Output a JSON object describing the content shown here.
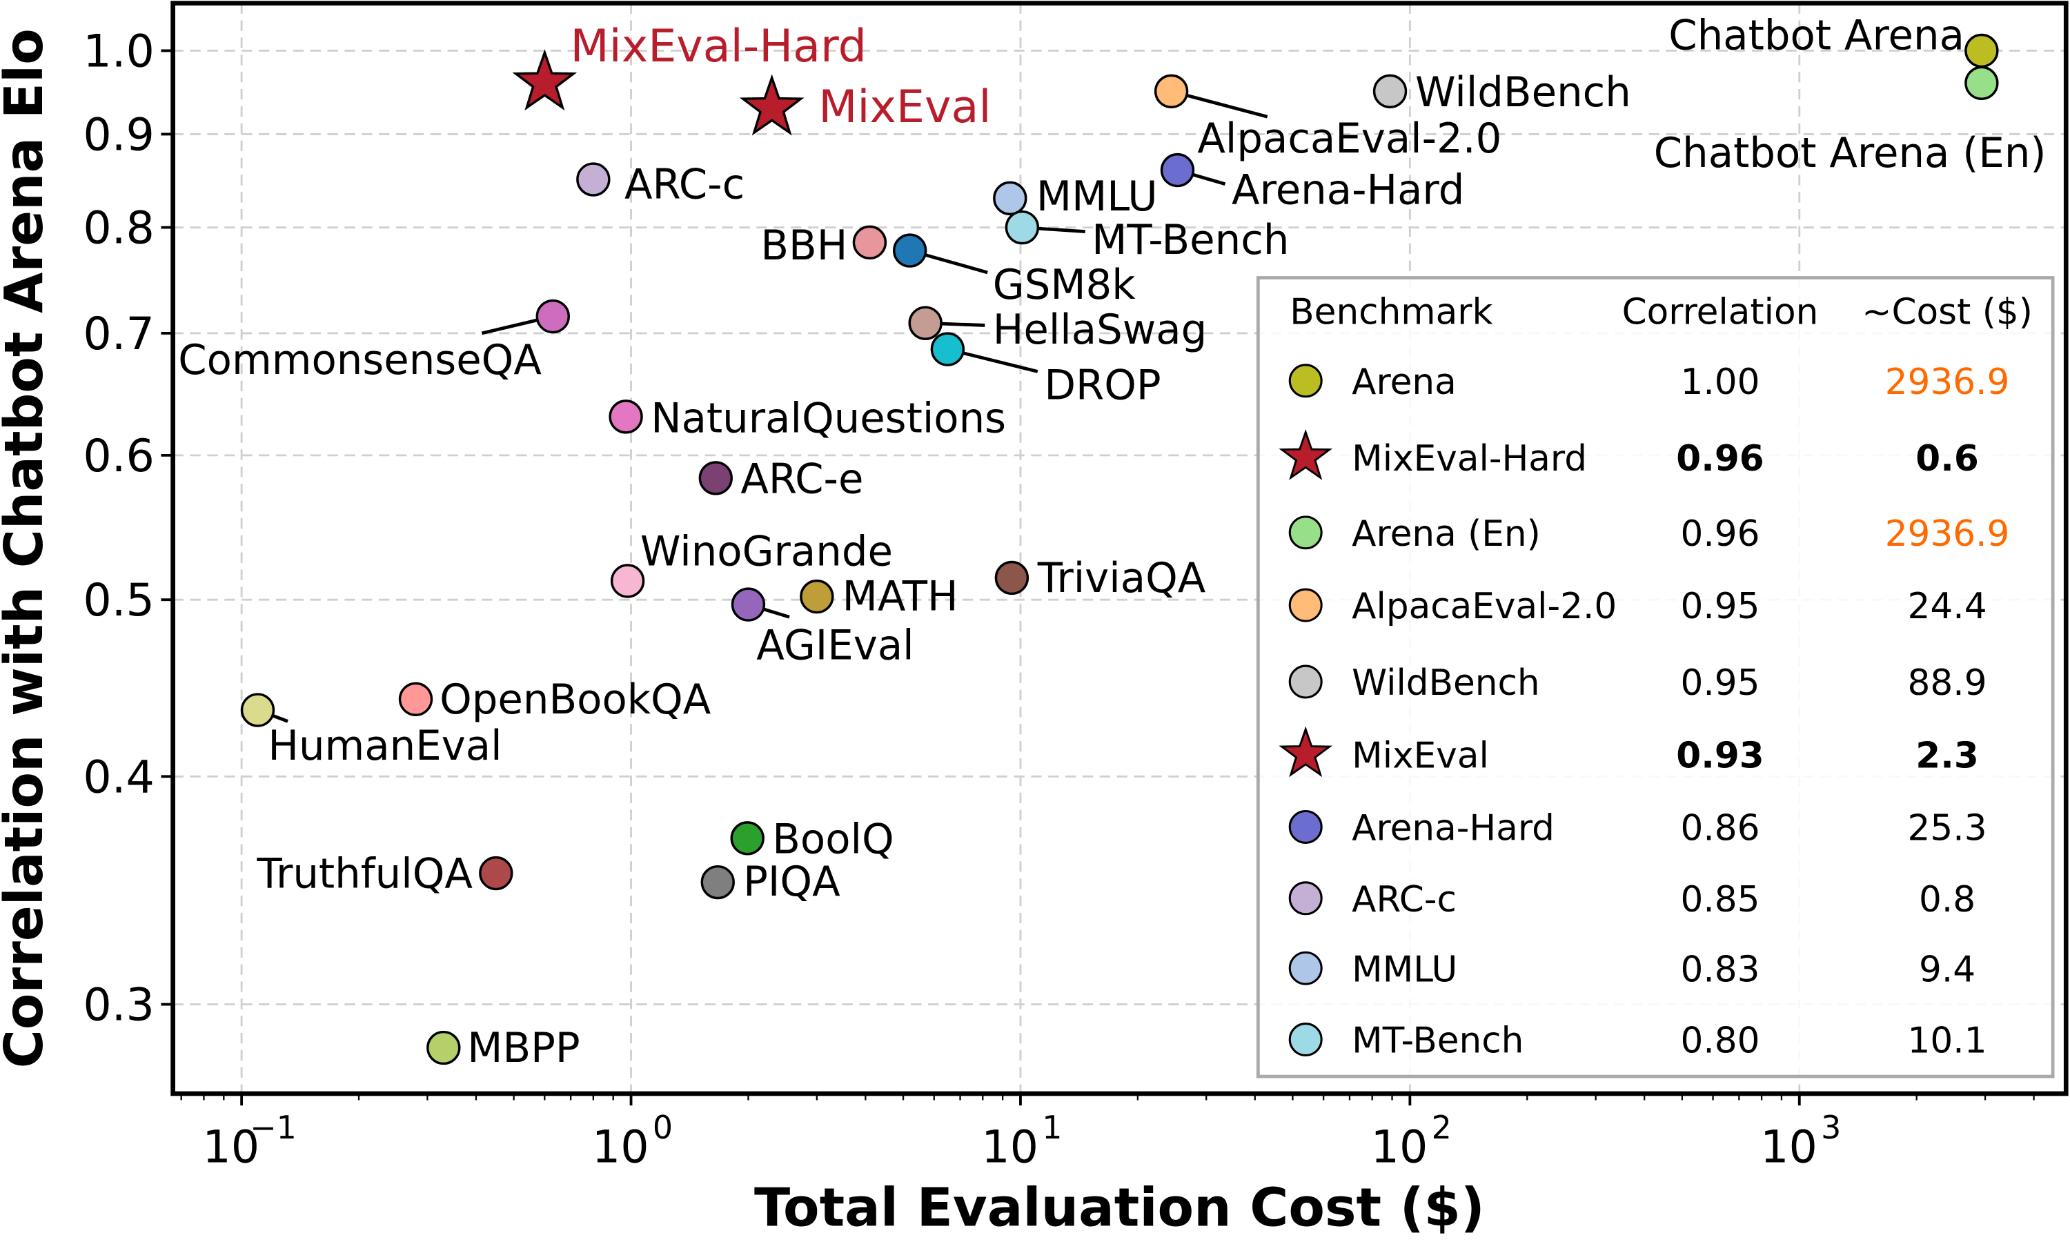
{
  "chart_data": {
    "type": "scatter",
    "xlabel": "Total Evaluation Cost ($)",
    "ylabel": "Correlation with Chatbot Arena Elo",
    "x_scale": "log",
    "y_scale": "log",
    "xlim": [
      0.065,
      5000
    ],
    "ylim": [
      0.27,
      1.065
    ],
    "x_ticks": [
      0.1,
      1,
      10,
      100,
      1000
    ],
    "x_tick_labels": [
      "10",
      "10",
      "10",
      "10",
      "10"
    ],
    "x_tick_exponents": [
      "−1",
      "0",
      "1",
      "2",
      "3"
    ],
    "y_ticks": [
      0.3,
      0.4,
      0.5,
      0.6,
      0.7,
      0.8,
      0.9,
      1.0
    ],
    "y_tick_labels": [
      "0.3",
      "0.4",
      "0.5",
      "0.6",
      "0.7",
      "0.8",
      "0.9",
      "1.0"
    ],
    "grid": true,
    "points": [
      {
        "name": "Chatbot Arena",
        "x": 2936.9,
        "y": 1.0,
        "color": "#bcbd22",
        "marker": "circle"
      },
      {
        "name": "Chatbot Arena (En)",
        "x": 2936.9,
        "y": 0.96,
        "color": "#98df8a",
        "marker": "circle"
      },
      {
        "name": "MixEval-Hard",
        "x": 0.6,
        "y": 0.96,
        "color": "#b81d2c",
        "marker": "star",
        "highlight": true
      },
      {
        "name": "MixEval",
        "x": 2.3,
        "y": 0.93,
        "color": "#b81d2c",
        "marker": "star",
        "highlight": true
      },
      {
        "name": "AlpacaEval-2.0",
        "x": 24.4,
        "y": 0.95,
        "color": "#ffbb78",
        "marker": "circle"
      },
      {
        "name": "WildBench",
        "x": 88.9,
        "y": 0.95,
        "color": "#c7c7c7",
        "marker": "circle"
      },
      {
        "name": "Arena-Hard",
        "x": 25.3,
        "y": 0.86,
        "color": "#6b6ecf",
        "marker": "circle"
      },
      {
        "name": "ARC-c",
        "x": 0.8,
        "y": 0.85,
        "color": "#c5b0d5",
        "marker": "circle"
      },
      {
        "name": "MMLU",
        "x": 9.4,
        "y": 0.83,
        "color": "#aec7e8",
        "marker": "circle"
      },
      {
        "name": "MT-Bench",
        "x": 10.1,
        "y": 0.8,
        "color": "#9edae5",
        "marker": "circle"
      },
      {
        "name": "BBH",
        "x": 4.1,
        "y": 0.785,
        "color": "#e7969c",
        "marker": "circle"
      },
      {
        "name": "GSM8k",
        "x": 5.2,
        "y": 0.777,
        "color": "#1f77b4",
        "marker": "circle"
      },
      {
        "name": "CommonsenseQA",
        "x": 0.63,
        "y": 0.715,
        "color": "#ce6dbd",
        "marker": "circle"
      },
      {
        "name": "HellaSwag",
        "x": 5.7,
        "y": 0.709,
        "color": "#c49c94",
        "marker": "circle"
      },
      {
        "name": "DROP",
        "x": 6.5,
        "y": 0.686,
        "color": "#17becf",
        "marker": "circle"
      },
      {
        "name": "NaturalQuestions",
        "x": 0.97,
        "y": 0.63,
        "color": "#e377c2",
        "marker": "circle"
      },
      {
        "name": "ARC-e",
        "x": 1.65,
        "y": 0.583,
        "color": "#7b4173",
        "marker": "circle"
      },
      {
        "name": "WinoGrande",
        "x": 0.98,
        "y": 0.512,
        "color": "#f7b6d2",
        "marker": "circle"
      },
      {
        "name": "MATH",
        "x": 3.0,
        "y": 0.502,
        "color": "#bd9e39",
        "marker": "circle"
      },
      {
        "name": "AGIEval",
        "x": 2.0,
        "y": 0.497,
        "color": "#9467bd",
        "marker": "circle"
      },
      {
        "name": "TriviaQA",
        "x": 9.5,
        "y": 0.514,
        "color": "#8c564b",
        "marker": "circle"
      },
      {
        "name": "OpenBookQA",
        "x": 0.28,
        "y": 0.441,
        "color": "#ff9896",
        "marker": "circle"
      },
      {
        "name": "HumanEval",
        "x": 0.11,
        "y": 0.435,
        "color": "#dbdb8d",
        "marker": "circle"
      },
      {
        "name": "BoolQ",
        "x": 1.99,
        "y": 0.37,
        "color": "#2ca02c",
        "marker": "circle"
      },
      {
        "name": "PIQA",
        "x": 1.67,
        "y": 0.35,
        "color": "#7f7f7f",
        "marker": "circle"
      },
      {
        "name": "TruthfulQA",
        "x": 0.45,
        "y": 0.354,
        "color": "#ad494a",
        "marker": "circle"
      },
      {
        "name": "MBPP",
        "x": 0.33,
        "y": 0.284,
        "color": "#b5cf6b",
        "marker": "circle"
      }
    ],
    "legend": {
      "placement": "lower-right",
      "headers": [
        "Benchmark",
        "Correlation",
        "~Cost ($)"
      ],
      "rows": [
        {
          "name": "Arena",
          "correlation": "1.00",
          "cost": "2936.9",
          "color": "#bcbd22",
          "marker": "circle",
          "cost_color": "#ff6a00"
        },
        {
          "name": "MixEval-Hard",
          "correlation": "0.96",
          "cost": "0.6",
          "color": "#b81d2c",
          "marker": "star",
          "bold": true
        },
        {
          "name": "Arena (En)",
          "correlation": "0.96",
          "cost": "2936.9",
          "color": "#98df8a",
          "marker": "circle",
          "cost_color": "#ff6a00"
        },
        {
          "name": "AlpacaEval-2.0",
          "correlation": "0.95",
          "cost": "24.4",
          "color": "#ffbb78",
          "marker": "circle"
        },
        {
          "name": "WildBench",
          "correlation": "0.95",
          "cost": "88.9",
          "color": "#c7c7c7",
          "marker": "circle"
        },
        {
          "name": "MixEval",
          "correlation": "0.93",
          "cost": "2.3",
          "color": "#b81d2c",
          "marker": "star",
          "bold": true
        },
        {
          "name": "Arena-Hard",
          "correlation": "0.86",
          "cost": "25.3",
          "color": "#6b6ecf",
          "marker": "circle"
        },
        {
          "name": "ARC-c",
          "correlation": "0.85",
          "cost": "0.8",
          "color": "#c5b0d5",
          "marker": "circle"
        },
        {
          "name": "MMLU",
          "correlation": "0.83",
          "cost": "9.4",
          "color": "#aec7e8",
          "marker": "circle"
        },
        {
          "name": "MT-Bench",
          "correlation": "0.80",
          "cost": "10.1",
          "color": "#9edae5",
          "marker": "circle"
        }
      ]
    }
  }
}
